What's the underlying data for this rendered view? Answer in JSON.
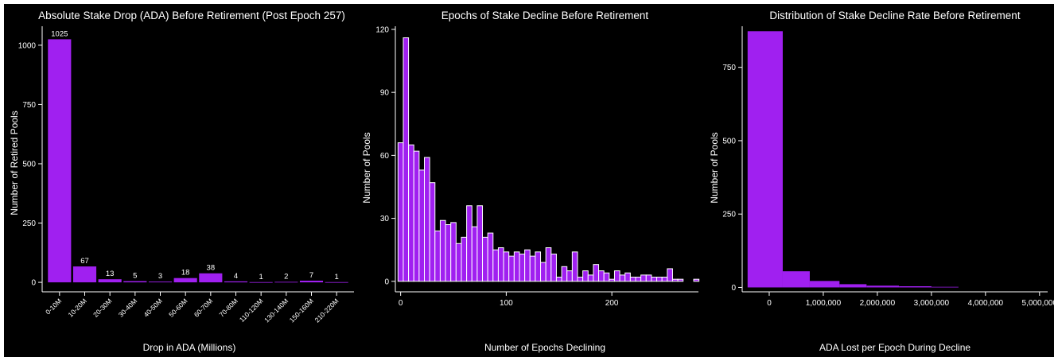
{
  "colors": {
    "bar": "#a020f0",
    "background": "#000000",
    "text": "#ffffff",
    "axis": "#ffffff"
  },
  "chart_data": [
    {
      "type": "bar",
      "title": "Absolute Stake Drop (ADA) Before Retirement (Post Epoch 257)",
      "xlabel": "Drop in ADA (Millions)",
      "ylabel": "Number of Retired Pools",
      "categories": [
        "0-10M",
        "10-20M",
        "20-30M",
        "30-40M",
        "40-50M",
        "50-60M",
        "60-70M",
        "70-80M",
        "110-120M",
        "130-140M",
        "150-160M",
        "210-220M"
      ],
      "values": [
        1025,
        67,
        13,
        5,
        3,
        18,
        38,
        4,
        1,
        2,
        7,
        1
      ],
      "data_labels": [
        "1025",
        "67",
        "13",
        "5",
        "3",
        "18",
        "38",
        "4",
        "1",
        "2",
        "7",
        "1"
      ],
      "ylim": [
        -40,
        1080
      ],
      "yticks": [
        0,
        250,
        500,
        750,
        1000
      ],
      "ytick_labels": [
        "0",
        "250",
        "500",
        "750",
        "1000"
      ]
    },
    {
      "type": "bar",
      "title": "Epochs of Stake Decline Before Retirement",
      "xlabel": "Number of Epochs Declining",
      "ylabel": "Number of Pools",
      "bin_width": 5,
      "x": [
        -2.5,
        2.5,
        7.5,
        12.5,
        17.5,
        22.5,
        27.5,
        32.5,
        37.5,
        42.5,
        47.5,
        52.5,
        57.5,
        62.5,
        67.5,
        72.5,
        77.5,
        82.5,
        87.5,
        92.5,
        97.5,
        102.5,
        107.5,
        112.5,
        117.5,
        122.5,
        127.5,
        132.5,
        137.5,
        142.5,
        147.5,
        152.5,
        157.5,
        162.5,
        167.5,
        172.5,
        177.5,
        182.5,
        187.5,
        192.5,
        197.5,
        202.5,
        207.5,
        212.5,
        217.5,
        222.5,
        227.5,
        232.5,
        237.5,
        242.5,
        247.5,
        252.5,
        257.5,
        262.5,
        277.5
      ],
      "values": [
        66,
        116,
        65,
        62,
        53,
        59,
        47,
        24,
        29,
        27,
        28,
        18,
        21,
        36,
        26,
        36,
        21,
        23,
        15,
        16,
        14,
        12,
        14,
        13,
        15,
        12,
        14,
        9,
        16,
        13,
        2,
        7,
        5,
        14,
        2,
        5,
        3,
        8,
        5,
        4,
        1,
        5,
        3,
        4,
        2,
        2,
        3,
        3,
        2,
        2,
        2,
        6,
        1,
        1,
        1
      ],
      "xlim": [
        -5,
        282
      ],
      "ylim": [
        -5,
        121.5
      ],
      "xticks": [
        0,
        100,
        200
      ],
      "xtick_labels": [
        "0",
        "100",
        "200"
      ],
      "yticks": [
        0,
        30,
        60,
        90,
        120
      ],
      "ytick_labels": [
        "0",
        "30",
        "60",
        "90",
        "120"
      ]
    },
    {
      "type": "bar",
      "title": "Distribution of Stake Decline Rate Before Retirement",
      "xlabel": "ADA Lost per Epoch During Decline",
      "ylabel": "Number of Pools",
      "bin_edges": [
        -400000,
        250000,
        750000,
        1300000,
        1800000,
        2400000,
        3000000,
        3500000
      ],
      "values": [
        873,
        55,
        22,
        11,
        6,
        4,
        2
      ],
      "xlim": [
        -500000,
        5150000
      ],
      "ylim": [
        -15,
        890
      ],
      "xticks": [
        0,
        1000000,
        2000000,
        3000000,
        4000000,
        5000000
      ],
      "xtick_labels": [
        "0",
        "1,000,000",
        "2,000,000",
        "3,000,000",
        "4,000,000",
        "5,000,000"
      ],
      "yticks": [
        0,
        250,
        500,
        750
      ],
      "ytick_labels": [
        "0",
        "250",
        "500",
        "750"
      ]
    }
  ]
}
